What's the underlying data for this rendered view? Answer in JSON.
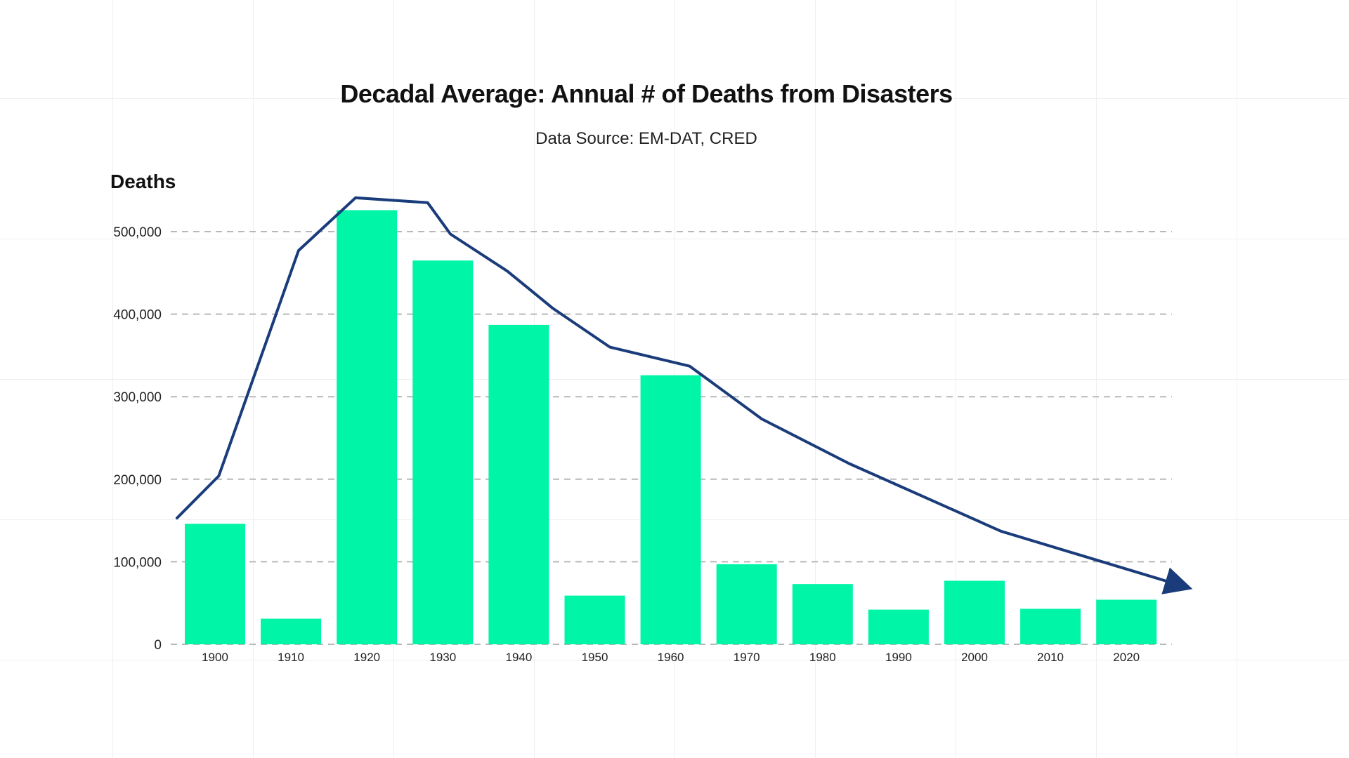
{
  "chart_data": {
    "type": "bar",
    "title": "Decadal Average: Annual # of Deaths from Disasters",
    "subtitle": "Data Source: EM-DAT, CRED",
    "ylabel": "Deaths",
    "xlabel": "",
    "categories": [
      "1900",
      "1910",
      "1920",
      "1930",
      "1940",
      "1950",
      "1960",
      "1970",
      "1980",
      "1990",
      "2000",
      "2010",
      "2020"
    ],
    "values": [
      146000,
      31000,
      526000,
      465000,
      387000,
      59000,
      326000,
      97000,
      73000,
      42000,
      77000,
      43000,
      54000
    ],
    "trend_line": {
      "x": [
        1895,
        1900.5,
        1911,
        1918.5,
        1928,
        1931,
        1938.5,
        1944.5,
        1952,
        1962.5,
        1972,
        1983.5,
        1993.5,
        2003.5,
        2012.5,
        2028
      ],
      "values": [
        153000,
        204000,
        477000,
        541000,
        535000,
        497000,
        452000,
        407000,
        360000,
        337000,
        273000,
        219000,
        178000,
        137000,
        112000,
        69000
      ]
    },
    "ylim": [
      0,
      560000
    ],
    "yticks": [
      0,
      100000,
      200000,
      300000,
      400000,
      500000
    ],
    "ytick_labels": [
      "0",
      "100,000",
      "200,000",
      "300,000",
      "400,000",
      "500,000"
    ],
    "grid": true,
    "colors": {
      "bar": "#00F5A6",
      "line": "#1A3C7A",
      "grid": "#b8b8b8"
    }
  }
}
